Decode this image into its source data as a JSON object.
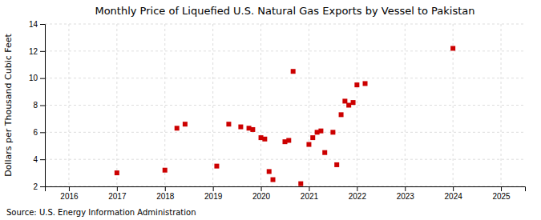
{
  "chart_data": {
    "type": "scatter",
    "title": "Monthly Price of Liquefied U.S. Natural Gas Exports by Vessel to Pakistan",
    "ylabel": "Dollars per Thousand Cubic Feet",
    "source": "Source: U.S. Energy Information Administration",
    "x": [
      2017.0,
      2018.0,
      2018.25,
      2018.42,
      2019.08,
      2019.33,
      2019.58,
      2019.75,
      2019.83,
      2020.0,
      2020.08,
      2020.17,
      2020.25,
      2020.5,
      2020.58,
      2020.67,
      2020.83,
      2021.0,
      2021.08,
      2021.17,
      2021.25,
      2021.33,
      2021.5,
      2021.58,
      2021.67,
      2021.75,
      2021.83,
      2021.92,
      2022.0,
      2022.17,
      2024.0
    ],
    "values": [
      3.0,
      3.2,
      6.3,
      6.6,
      3.5,
      6.6,
      6.4,
      6.3,
      6.2,
      5.6,
      5.5,
      3.1,
      2.5,
      5.3,
      5.4,
      10.5,
      2.2,
      5.1,
      5.6,
      6.0,
      6.1,
      4.5,
      6.0,
      3.6,
      7.3,
      8.3,
      8.0,
      8.2,
      9.5,
      9.6,
      12.2
    ],
    "xlim": [
      2015.5,
      2025.5
    ],
    "xticks": [
      2016,
      2017,
      2018,
      2019,
      2020,
      2021,
      2022,
      2023,
      2024,
      2025
    ],
    "ylim": [
      2,
      14
    ],
    "yticks": [
      2,
      4,
      6,
      8,
      10,
      12,
      14
    ],
    "color": "#cc0000",
    "marker": "square",
    "grid": true
  }
}
